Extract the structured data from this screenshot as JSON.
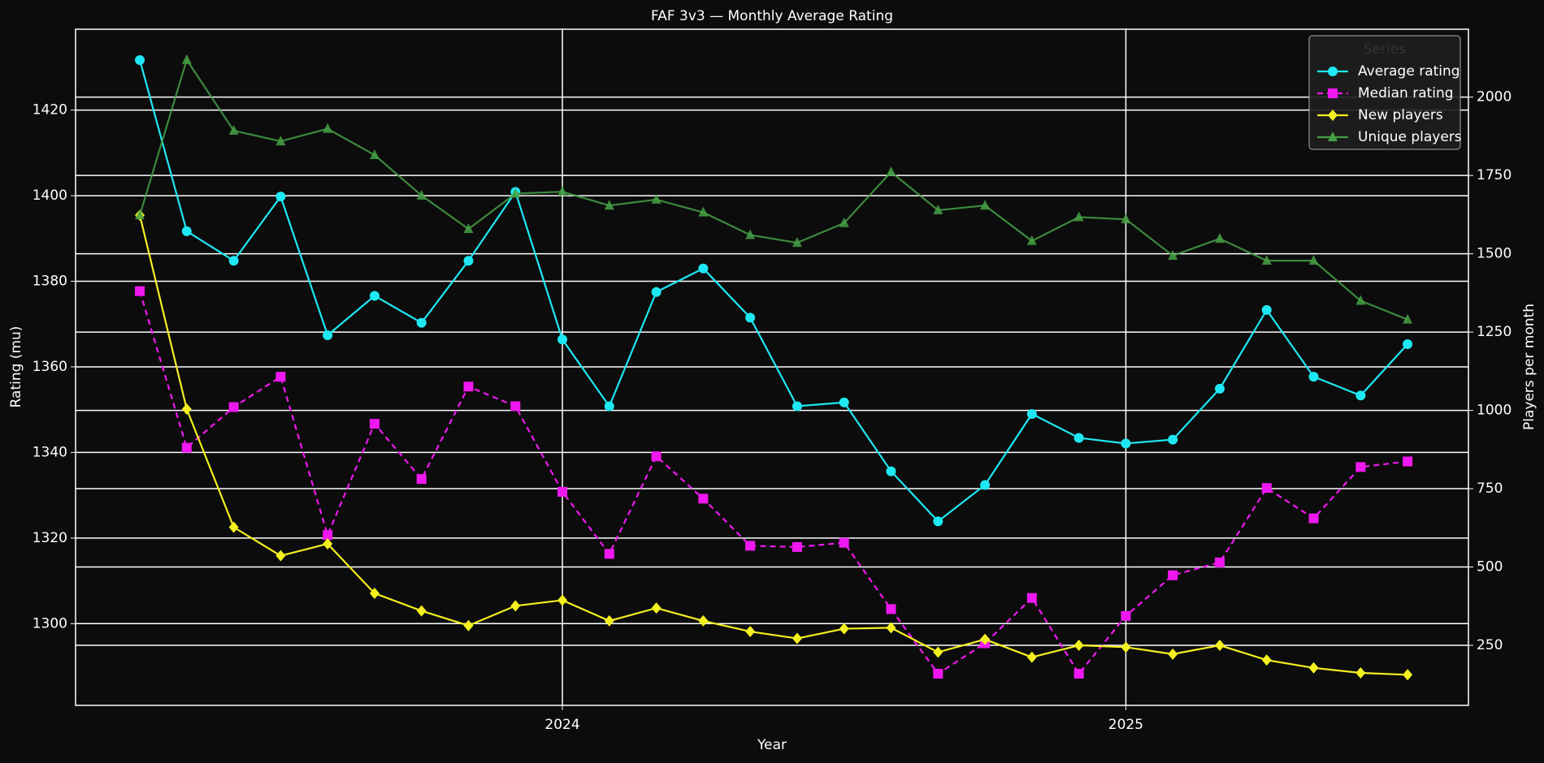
{
  "chart_data": {
    "type": "line",
    "title": "FAF 3v3 — Monthly Average Rating",
    "x_label": "Year",
    "y_label": "Rating (mu)",
    "y2_label": "Players per month",
    "x": [
      2023.25,
      2023.3333,
      2023.4167,
      2023.5,
      2023.5833,
      2023.6667,
      2023.75,
      2023.8333,
      2023.9167,
      2024,
      2024.0833,
      2024.1667,
      2024.25,
      2024.3333,
      2024.4167,
      2024.5,
      2024.5833,
      2024.6667,
      2024.75,
      2024.8333,
      2024.9167,
      2025,
      2025.0833,
      2025.1667,
      2025.25,
      2025.3333,
      2025.4167,
      2025.5
    ],
    "series": [
      {
        "name": "Average rating",
        "color": "#1ee8f4",
        "marker": "circle",
        "dash": false,
        "values": [
          1431.7,
          1391.7,
          1384.8,
          1399.8,
          1367.4,
          1376.6,
          1370.3,
          1384.8,
          1400.9,
          1366.4,
          1350.8,
          1377.5,
          1383.0,
          1371.5,
          1350.8,
          1351.7,
          1335.6,
          1323.9,
          1332.4,
          1349.0,
          1343.4,
          1342.1,
          1343.0,
          1354.9,
          1373.3,
          1357.7,
          1353.3,
          1365.3
        ]
      },
      {
        "name": "Median rating",
        "color": "#f018f0",
        "marker": "square",
        "dash": true,
        "values": [
          1377.7,
          1341.1,
          1350.6,
          1357.7,
          1320.7,
          1346.7,
          1333.8,
          1355.4,
          1350.8,
          1330.8,
          1316.3,
          1339.1,
          1329.2,
          1318.2,
          1317.9,
          1318.9,
          1303.4,
          1288.3,
          1295.4,
          1306.0,
          1288.3,
          1301.8,
          1311.3,
          1314.3,
          1331.7,
          1324.6,
          1336.6,
          1337.9
        ]
      },
      {
        "name": "New players",
        "color": "#f4f020",
        "marker": "diamond",
        "dash": false,
        "axis": "y2",
        "values": [
          1623,
          1004,
          627,
          536,
          574,
          416,
          360,
          313,
          376,
          394,
          328,
          369,
          328,
          294,
          272,
          303,
          306,
          228,
          269,
          212,
          250,
          244,
          222,
          250,
          203,
          178,
          162,
          156
        ]
      },
      {
        "name": "Unique players",
        "color": "#45a045",
        "marker": "triangle",
        "dash": false,
        "axis": "y2",
        "values": [
          1623,
          2119,
          1893,
          1859,
          1899,
          1815,
          1686,
          1579,
          1692,
          1698,
          1654,
          1673,
          1632,
          1560,
          1535,
          1598,
          1761,
          1639,
          1654,
          1541,
          1617,
          1610,
          1494,
          1548,
          1478,
          1478,
          1350,
          1290
        ]
      }
    ],
    "xlim": [
      2023.136,
      2025.608
    ],
    "xticks": [
      2024,
      2025
    ],
    "ylim": [
      1280.9,
      1438.9
    ],
    "yticks": [
      1300,
      1320,
      1340,
      1360,
      1380,
      1400,
      1420
    ],
    "y2lim": [
      58.3,
      2216.8
    ],
    "y2ticks": [
      250,
      500,
      750,
      1000,
      1250,
      1500,
      1750,
      2000
    ],
    "grid": true,
    "legend_title": "Series",
    "legend_position": "upper right"
  }
}
